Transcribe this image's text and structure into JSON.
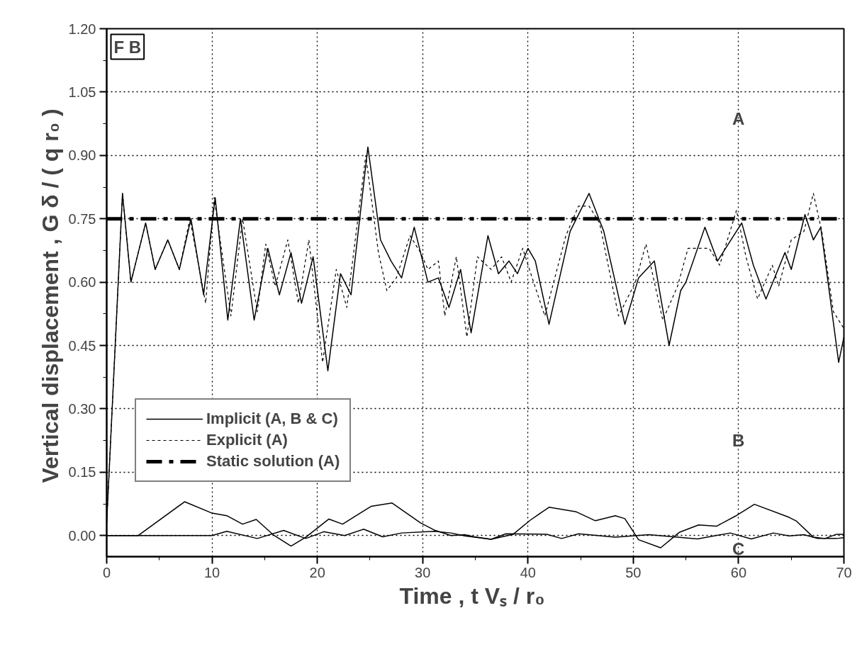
{
  "chart_data": {
    "type": "line",
    "xlabel": "Time ,  t Vₛ / r₀",
    "ylabel": "Vertical displacement ,  G δ / ( q r₀ )",
    "xlim": [
      0,
      70
    ],
    "ylim": [
      -0.05,
      1.2
    ],
    "xticks": [
      0,
      10,
      20,
      30,
      40,
      50,
      60,
      70
    ],
    "yticks": [
      {
        "value": 0,
        "label": "0.00"
      },
      {
        "value": 0.15,
        "label": "0.15"
      },
      {
        "value": 0.3,
        "label": "0.30"
      },
      {
        "value": 0.45,
        "label": "0.45"
      },
      {
        "value": 0.6,
        "label": "0.60"
      },
      {
        "value": 0.75,
        "label": "0.75"
      },
      {
        "value": 0.9,
        "label": "0.90"
      },
      {
        "value": 1.05,
        "label": "1.05"
      },
      {
        "value": 1.2,
        "label": "1.20"
      }
    ],
    "grid": true,
    "legend": "bottom left",
    "marker": "none",
    "annotations": [
      "F B",
      "A",
      "B",
      "C"
    ],
    "series": [
      {
        "name": "Implicit (A, B & C)",
        "color": "#000000",
        "line_style": "solid",
        "x": [
          0,
          1.5,
          2.3,
          3.7,
          4.6,
          5.8,
          6.9,
          8,
          9.2,
          10.3,
          11.5,
          12.7,
          14,
          15.3,
          16.4,
          17.5,
          18.5,
          19.6,
          21,
          22.2,
          23.2,
          24.8,
          26,
          27,
          28,
          29.2,
          30.5,
          31.5,
          32.5,
          33.6,
          34.6,
          36.2,
          37.2,
          38.2,
          39,
          40,
          40.7,
          42,
          44,
          45.8,
          47.2,
          49.2,
          50.5,
          52,
          53.4,
          54.5,
          55,
          56.8,
          58,
          60.3,
          61.4,
          62.6,
          64.4,
          65,
          66.3,
          67.1,
          67.8,
          69.5,
          70
        ],
        "values": [
          0.03,
          0.81,
          0.6,
          0.74,
          0.63,
          0.7,
          0.63,
          0.75,
          0.57,
          0.8,
          0.51,
          0.75,
          0.51,
          0.68,
          0.57,
          0.67,
          0.55,
          0.66,
          0.39,
          0.62,
          0.57,
          0.92,
          0.7,
          0.65,
          0.61,
          0.73,
          0.6,
          0.61,
          0.54,
          0.63,
          0.48,
          0.71,
          0.62,
          0.65,
          0.62,
          0.68,
          0.65,
          0.5,
          0.72,
          0.81,
          0.72,
          0.5,
          0.61,
          0.65,
          0.45,
          0.58,
          0.6,
          0.73,
          0.65,
          0.74,
          0.64,
          0.56,
          0.67,
          0.63,
          0.76,
          0.7,
          0.73,
          0.41,
          0.47
        ]
      },
      {
        "name": "Explicit (A)",
        "color": "#000000",
        "line_style": "dashed",
        "x": [
          0,
          1.5,
          2.3,
          3.7,
          4.6,
          5.8,
          6.9,
          7.9,
          9.4,
          10.2,
          11.8,
          12.9,
          14.3,
          15.1,
          16,
          17.2,
          18.2,
          19.2,
          20.5,
          21.8,
          22.8,
          24.6,
          25.8,
          26.6,
          27.5,
          28.8,
          29.8,
          30.5,
          31.5,
          32.1,
          33.2,
          34.2,
          35.2,
          36.5,
          37.5,
          38.4,
          39.5,
          40.4,
          41.6,
          43.6,
          44.8,
          45.8,
          46.8,
          48.6,
          50.2,
          51.2,
          52.8,
          54.2,
          55.2,
          57.2,
          58.2,
          59.8,
          60.7,
          61.8,
          63.2,
          63.8,
          65,
          66.2,
          67.1,
          67.9,
          69,
          70
        ],
        "values": [
          0.03,
          0.81,
          0.6,
          0.74,
          0.63,
          0.7,
          0.63,
          0.75,
          0.55,
          0.8,
          0.52,
          0.75,
          0.53,
          0.69,
          0.59,
          0.7,
          0.55,
          0.7,
          0.41,
          0.63,
          0.54,
          0.9,
          0.67,
          0.58,
          0.61,
          0.71,
          0.67,
          0.63,
          0.65,
          0.52,
          0.66,
          0.47,
          0.66,
          0.63,
          0.66,
          0.6,
          0.68,
          0.61,
          0.52,
          0.71,
          0.78,
          0.78,
          0.74,
          0.52,
          0.6,
          0.69,
          0.51,
          0.59,
          0.68,
          0.68,
          0.64,
          0.77,
          0.66,
          0.56,
          0.64,
          0.59,
          0.7,
          0.72,
          0.81,
          0.72,
          0.53,
          0.49
        ]
      },
      {
        "name": "Static solution (A)",
        "color": "#000000",
        "line_style": "dashdot",
        "x": [
          0,
          70
        ],
        "values": [
          0.75,
          0.75
        ]
      },
      {
        "color": "#000000",
        "line_style": "solid",
        "x": [
          0,
          3,
          7.4,
          10,
          11.4,
          12.9,
          14.2,
          15.8,
          17.5,
          18.9,
          21.1,
          22.4,
          25.1,
          27.1,
          29.8,
          31.1,
          32.7,
          34,
          34.9,
          36.5,
          38.6,
          40.2,
          42,
          44.6,
          46.4,
          48.3,
          49.2,
          50.5,
          52.6,
          54.4,
          56.2,
          57.9,
          59.7,
          61.5,
          64.8,
          65.5,
          67.1,
          68.2,
          69.3,
          70
        ],
        "values": [
          0,
          0,
          0.08,
          0.053,
          0.047,
          0.027,
          0.038,
          0.002,
          -0.025,
          -0.004,
          0.039,
          0.027,
          0.069,
          0.077,
          0.03,
          0.013,
          0,
          0.002,
          -0.003,
          -0.009,
          0.003,
          0.036,
          0.067,
          0.056,
          0.035,
          0.047,
          0.04,
          -0.01,
          -0.029,
          0.008,
          0.025,
          0.022,
          0.046,
          0.074,
          0.043,
          0.034,
          -0.004,
          -0.007,
          0.003,
          0.003
        ]
      },
      {
        "color": "#000000",
        "line_style": "solid",
        "x": [
          0,
          10,
          11.4,
          14.3,
          16.8,
          18.9,
          20.6,
          22.6,
          24.4,
          26.2,
          28,
          31.1,
          32.7,
          34,
          36.5,
          37.9,
          41.8,
          43.2,
          44.8,
          48.3,
          51.5,
          56.1,
          59.2,
          61.2,
          63.3,
          64.8,
          66.2,
          67.5,
          69.3,
          70
        ],
        "values": [
          0,
          0,
          0.01,
          -0.007,
          0.012,
          -0.007,
          0.009,
          0,
          0.015,
          -0.003,
          0.006,
          0.01,
          0.006,
          -0.001,
          -0.009,
          0.004,
          0.003,
          -0.007,
          0.004,
          -0.004,
          0.002,
          -0.008,
          0.006,
          -0.008,
          0.006,
          -0.001,
          0.002,
          -0.007,
          -0.007,
          -0.005
        ]
      }
    ]
  }
}
